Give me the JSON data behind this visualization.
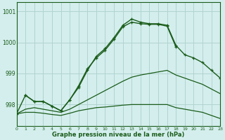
{
  "xlabel": "Graphe pression niveau de la mer (hPa)",
  "bg_color": "#d4eeed",
  "grid_color": "#b0d4d0",
  "line_color": "#1a5c1a",
  "ylim": [
    997.3,
    1001.3
  ],
  "xlim": [
    0,
    23
  ],
  "yticks": [
    998,
    999,
    1000,
    1001
  ],
  "xticks": [
    0,
    1,
    2,
    3,
    4,
    5,
    6,
    7,
    8,
    9,
    10,
    11,
    12,
    13,
    14,
    15,
    16,
    17,
    18,
    19,
    20,
    21,
    22,
    23
  ],
  "series": [
    {
      "x": [
        0,
        1,
        2,
        3,
        4,
        5,
        6,
        7,
        8,
        9,
        10,
        11,
        12,
        13,
        14,
        15,
        16,
        17,
        18,
        19,
        20,
        21,
        22,
        23
      ],
      "y": [
        997.7,
        998.3,
        998.1,
        998.1,
        997.95,
        997.8,
        998.15,
        998.55,
        999.1,
        999.55,
        999.8,
        1000.15,
        1000.55,
        1000.75,
        1000.65,
        1000.6,
        1000.6,
        1000.55,
        999.9,
        999.6,
        999.5,
        999.35,
        999.1,
        998.85
      ],
      "marker": true
    },
    {
      "x": [
        0,
        1,
        2,
        3,
        4,
        5,
        6,
        7,
        8,
        9,
        10,
        11,
        12,
        13,
        14,
        15,
        16,
        17,
        18,
        19,
        20,
        21,
        22,
        23
      ],
      "y": [
        997.7,
        997.85,
        997.9,
        997.85,
        997.8,
        997.75,
        997.85,
        998.0,
        998.15,
        998.3,
        998.45,
        998.6,
        998.75,
        998.88,
        998.95,
        999.0,
        999.05,
        999.1,
        998.95,
        998.85,
        998.75,
        998.65,
        998.5,
        998.35
      ],
      "marker": false
    },
    {
      "x": [
        0,
        1,
        2,
        3,
        4,
        5,
        6,
        7,
        8,
        9,
        10,
        11,
        12,
        13,
        14,
        15,
        16,
        17,
        18,
        19,
        20,
        21,
        22,
        23
      ],
      "y": [
        997.7,
        997.75,
        997.75,
        997.72,
        997.68,
        997.65,
        997.72,
        997.8,
        997.85,
        997.9,
        997.92,
        997.95,
        997.98,
        998.0,
        998.0,
        998.0,
        998.0,
        998.0,
        997.9,
        997.85,
        997.8,
        997.75,
        997.65,
        997.55
      ],
      "marker": false
    },
    {
      "x": [
        1,
        2,
        3,
        4,
        5,
        6,
        7,
        8,
        9,
        10,
        11,
        12,
        13,
        14,
        15,
        16,
        17,
        18
      ],
      "y": [
        998.3,
        998.1,
        998.1,
        997.95,
        997.8,
        998.15,
        998.6,
        999.15,
        999.5,
        999.75,
        1000.1,
        1000.5,
        1000.65,
        1000.6,
        1000.58,
        1000.58,
        1000.52,
        999.85
      ],
      "marker": true
    }
  ]
}
